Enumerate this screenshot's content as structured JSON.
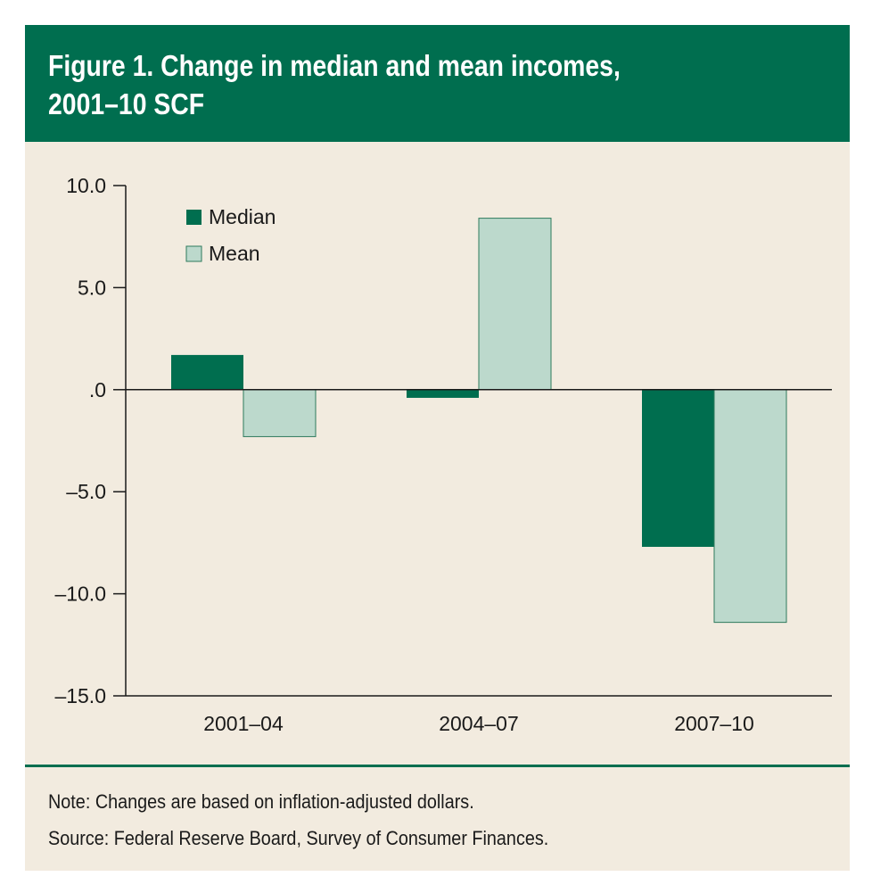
{
  "figure": {
    "title": "Figure 1. Change in median and mean incomes,\n2001–10 SCF",
    "note": "Note: Changes are based on inflation-adjusted dollars.",
    "source": "Source: Federal Reserve Board, Survey of Consumer Finances."
  },
  "colors": {
    "header": "#006e4f",
    "background": "#f2ebdf",
    "median": "#006e4f",
    "mean": "#bcd9cc",
    "mean_stroke": "#2e7a5c",
    "axis": "#1a1a1a"
  },
  "chart_data": {
    "type": "bar",
    "categories": [
      "2001–04",
      "2004–07",
      "2007–10"
    ],
    "series": [
      {
        "name": "Median",
        "values": [
          1.7,
          -0.4,
          -7.7
        ]
      },
      {
        "name": "Mean",
        "values": [
          -2.3,
          8.4,
          -11.4
        ]
      }
    ],
    "ylim": [
      -15,
      10
    ],
    "yticks": [
      10,
      5,
      0,
      -5,
      -10,
      -15
    ],
    "ytick_labels": [
      "10.0",
      "5.0",
      ".0",
      "–5.0",
      "–10.0",
      "–15.0"
    ],
    "legend_position": "top-left",
    "grid": false
  }
}
